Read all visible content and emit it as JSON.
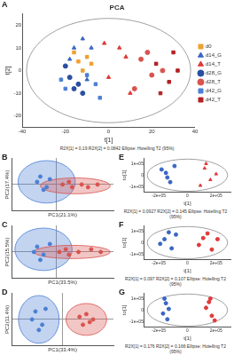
{
  "chart_data": [
    {
      "type": "scatter",
      "panel": "A",
      "title": "PCA",
      "x_label": "t[1]",
      "y_label": "t[2]",
      "xlim": [
        -40,
        40
      ],
      "xticks": [
        -40,
        -20,
        0,
        20,
        40
      ],
      "ylim": [
        -25,
        25
      ],
      "yticks": [
        -20,
        -10,
        0,
        10,
        20
      ],
      "grid": false,
      "legend": "right",
      "annotation": "R2X[1] = 0.19    R2X[2] = 0.0842    Ellipse: Hotelling T2 (95%)",
      "ellipse": {
        "cx": 0,
        "cy": 0,
        "rx": 38,
        "ry": 23
      },
      "series": [
        {
          "name": "d0",
          "color": "#f0a030",
          "marker": "rect",
          "values": [
            [
              -14,
              4
            ],
            [
              -10,
              6
            ],
            [
              -12,
              0
            ],
            [
              -8,
              3
            ],
            [
              -16,
              8
            ]
          ]
        },
        {
          "name": "d14_G",
          "color": "#3a66c4",
          "marker": "triangle",
          "values": [
            [
              -16,
              10
            ],
            [
              -12,
              14
            ],
            [
              -8,
              10
            ],
            [
              -18,
              5
            ],
            [
              -10,
              -4
            ]
          ]
        },
        {
          "name": "d14_T",
          "color": "#e03a3a",
          "marker": "triangle",
          "values": [
            [
              5,
              10
            ],
            [
              0,
              -3
            ],
            [
              10,
              -10
            ],
            [
              8,
              6
            ],
            [
              -2,
              12
            ]
          ]
        },
        {
          "name": "d28_G",
          "color": "#2b4fa0",
          "marker": "circle",
          "values": [
            [
              -18,
              -3
            ],
            [
              -14,
              -6
            ],
            [
              -20,
              2
            ],
            [
              -12,
              -10
            ],
            [
              -16,
              -8
            ]
          ]
        },
        {
          "name": "d28_T",
          "color": "#d9534f",
          "marker": "circle",
          "values": [
            [
              15,
              5
            ],
            [
              20,
              -2
            ],
            [
              12,
              -8
            ],
            [
              18,
              8
            ],
            [
              25,
              0
            ]
          ]
        },
        {
          "name": "d42_G",
          "color": "#4a7fd4",
          "marker": "rect",
          "values": [
            [
              -6,
              -6
            ],
            [
              -20,
              -8
            ],
            [
              -10,
              -2
            ],
            [
              -4,
              -12
            ],
            [
              -22,
              -4
            ]
          ]
        },
        {
          "name": "d42_T",
          "color": "#b22222",
          "marker": "rect",
          "values": [
            [
              22,
              3
            ],
            [
              28,
              -5
            ],
            [
              30,
              8
            ],
            [
              24,
              -10
            ],
            [
              32,
              0
            ]
          ]
        }
      ]
    },
    {
      "type": "scatter",
      "panel": "B",
      "x_label": "PC1(21.1%)",
      "y_label": "PC2(17.4%)",
      "xlim": [
        -14,
        18
      ],
      "xticks": [
        0
      ],
      "ylim": [
        -10,
        10
      ],
      "yticks": [
        0
      ],
      "grid": true,
      "tick_labels": false,
      "series": [
        {
          "color": "#4a7fd4",
          "marker": "circle",
          "ellipse": {
            "cx": -3,
            "cy": 1,
            "rx": 9,
            "ry": 8
          },
          "values": [
            [
              -5,
              3
            ],
            [
              -3,
              -1
            ],
            [
              -6,
              1
            ],
            [
              -2,
              2
            ],
            [
              -4,
              -2
            ]
          ]
        },
        {
          "color": "#d9534f",
          "marker": "circle",
          "ellipse": {
            "cx": 6,
            "cy": -0.5,
            "rx": 11,
            "ry": 3
          },
          "values": [
            [
              2,
              0
            ],
            [
              5,
              -1
            ],
            [
              8,
              0
            ],
            [
              10,
              -1
            ],
            [
              13,
              0
            ],
            [
              4,
              1
            ]
          ]
        }
      ]
    },
    {
      "type": "scatter",
      "panel": "C",
      "x_label": "PC1(33.5%)",
      "y_label": "PC2(15.5%)",
      "xlim": [
        -14,
        18
      ],
      "xticks": [
        0
      ],
      "ylim": [
        -10,
        10
      ],
      "yticks": [
        0
      ],
      "grid": true,
      "tick_labels": false,
      "series": [
        {
          "color": "#4a7fd4",
          "marker": "circle",
          "ellipse": {
            "cx": -4,
            "cy": 1,
            "rx": 9,
            "ry": 8
          },
          "values": [
            [
              -6,
              2
            ],
            [
              -4,
              -1
            ],
            [
              -7,
              0
            ],
            [
              -2,
              3
            ],
            [
              -5,
              -3
            ]
          ]
        },
        {
          "color": "#d9534f",
          "marker": "circle",
          "ellipse": {
            "cx": 5,
            "cy": 0,
            "rx": 12,
            "ry": 2.5
          },
          "values": [
            [
              1,
              0
            ],
            [
              4,
              -1
            ],
            [
              7,
              0
            ],
            [
              11,
              1
            ],
            [
              14,
              0
            ],
            [
              3,
              1
            ]
          ]
        }
      ]
    },
    {
      "type": "scatter",
      "panel": "D",
      "x_label": "PC1(33.4%)",
      "y_label": "PC2(11.4%)",
      "xlim": [
        -15,
        15
      ],
      "xticks": [
        0
      ],
      "ylim": [
        -10,
        10
      ],
      "yticks": [
        0
      ],
      "grid": true,
      "tick_labels": false,
      "series": [
        {
          "color": "#4a7fd4",
          "marker": "circle",
          "ellipse": {
            "cx": -7,
            "cy": 0,
            "rx": 6,
            "ry": 9
          },
          "values": [
            [
              -8,
              3
            ],
            [
              -6,
              -2
            ],
            [
              -9,
              0
            ],
            [
              -5,
              4
            ],
            [
              -7,
              -4
            ]
          ]
        },
        {
          "color": "#d9534f",
          "marker": "circle",
          "ellipse": {
            "cx": 7,
            "cy": 0,
            "rx": 6,
            "ry": 6
          },
          "values": [
            [
              5,
              1
            ],
            [
              8,
              -1
            ],
            [
              7,
              2
            ],
            [
              9,
              0
            ],
            [
              6,
              -2
            ]
          ]
        }
      ]
    },
    {
      "type": "scatter",
      "panel": "E",
      "x_label": "t[1]",
      "y_label": "to[1]",
      "xlim": [
        -300000,
        300000
      ],
      "xticks": [
        {
          "value": -200000,
          "label": "-2e+05"
        },
        0,
        {
          "value": 200000,
          "label": "2e+05"
        }
      ],
      "ylim": [
        -150000,
        150000
      ],
      "yticks": [
        {
          "value": -100000,
          "label": "-1e+05"
        },
        0,
        {
          "value": 100000,
          "label": "1e+05"
        }
      ],
      "grid": false,
      "annotation": "R2X[1] = 0.0927    R2X[2] = 0.145    Ellipse: Hotelling T2 (95%)",
      "ellipse": {
        "cx": 0,
        "cy": 0,
        "rx": 280000,
        "ry": 140000
      },
      "series": [
        {
          "color": "#3a66c4",
          "marker": "circle",
          "values": [
            [
              -150000,
              20000
            ],
            [
              -120000,
              -60000
            ],
            [
              -180000,
              50000
            ],
            [
              -90000,
              80000
            ],
            [
              -140000,
              -20000
            ]
          ]
        },
        {
          "color": "#e03a3a",
          "marker": "triangle",
          "values": [
            [
              120000,
              60000
            ],
            [
              160000,
              -40000
            ],
            [
              90000,
              -90000
            ],
            [
              200000,
              10000
            ],
            [
              130000,
              100000
            ]
          ]
        }
      ]
    },
    {
      "type": "scatter",
      "panel": "F",
      "x_label": "t[1]",
      "y_label": "to[1]",
      "xlim": [
        -300000,
        300000
      ],
      "xticks": [
        {
          "value": -200000,
          "label": "-2e+05"
        },
        0,
        {
          "value": 200000,
          "label": "2e+05"
        }
      ],
      "ylim": [
        -150000,
        150000
      ],
      "yticks": [
        {
          "value": -100000,
          "label": "-1e+05"
        },
        0,
        {
          "value": 100000,
          "label": "1e+05"
        }
      ],
      "grid": false,
      "annotation": "R2X[1] = 0.097    R2X[2] = 0.107    Ellipse: Hotelling T2 (95%)",
      "ellipse": {
        "cx": 0,
        "cy": 0,
        "rx": 280000,
        "ry": 140000
      },
      "series": [
        {
          "color": "#3a66c4",
          "marker": "circle",
          "values": [
            [
              -160000,
              30000
            ],
            [
              -110000,
              -50000
            ],
            [
              -190000,
              -10000
            ],
            [
              -80000,
              70000
            ],
            [
              -130000,
              90000
            ]
          ]
        },
        {
          "color": "#e03a3a",
          "marker": "circle",
          "values": [
            [
              110000,
              40000
            ],
            [
              170000,
              -60000
            ],
            [
              80000,
              -20000
            ],
            [
              210000,
              30000
            ],
            [
              140000,
              80000
            ]
          ]
        }
      ]
    },
    {
      "type": "scatter",
      "panel": "G",
      "x_label": "t[1]",
      "y_label": "to[1]",
      "xlim": [
        -300000,
        300000
      ],
      "xticks": [
        {
          "value": -200000,
          "label": "-2e+05"
        },
        0,
        {
          "value": 200000,
          "label": "2e+05"
        }
      ],
      "ylim": [
        -150000,
        150000
      ],
      "yticks": [
        {
          "value": -100000,
          "label": "-1e+05"
        },
        0,
        {
          "value": 100000,
          "label": "1e+05"
        }
      ],
      "grid": false,
      "annotation": "R2X[1] = 0.176    R2X[2] = 0.166    Ellipse: Hotelling T2 (95%)",
      "ellipse": {
        "cx": 0,
        "cy": 0,
        "rx": 280000,
        "ry": 140000
      },
      "series": [
        {
          "color": "#3a66c4",
          "marker": "circle",
          "values": [
            [
              -150000,
              60000
            ],
            [
              -170000,
              -30000
            ],
            [
              -140000,
              -80000
            ],
            [
              -160000,
              100000
            ],
            [
              -130000,
              10000
            ]
          ]
        },
        {
          "color": "#e03a3a",
          "marker": "circle",
          "values": [
            [
              150000,
              70000
            ],
            [
              170000,
              -50000
            ],
            [
              130000,
              20000
            ],
            [
              190000,
              -90000
            ],
            [
              160000,
              100000
            ]
          ]
        }
      ]
    }
  ]
}
